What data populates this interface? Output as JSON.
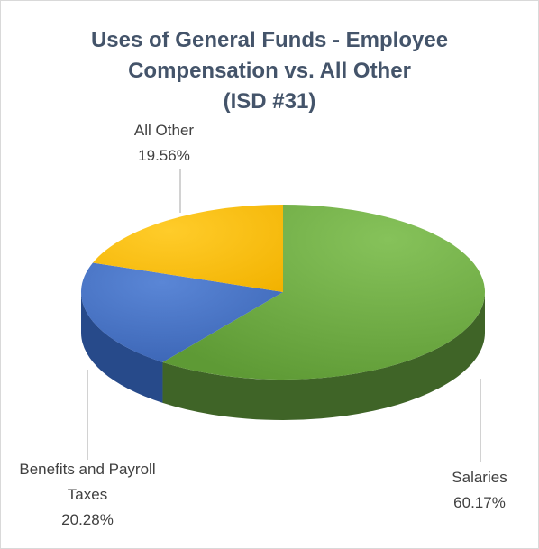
{
  "chart_data": {
    "type": "pie",
    "title_lines": [
      "Uses of General Funds - Employee",
      "Compensation vs. All Other",
      "(ISD #31)"
    ],
    "slices": [
      {
        "name": "Salaries",
        "label_lines": [
          "Salaries"
        ],
        "value": 60.17,
        "value_label": "60.17%",
        "color": "#70ad47",
        "side": "#3f6427"
      },
      {
        "name": "Benefits and Payroll Taxes",
        "label_lines": [
          "Benefits and Payroll",
          "Taxes"
        ],
        "value": 20.28,
        "value_label": "20.28%",
        "color": "#4472c4",
        "side": "#274a8a"
      },
      {
        "name": "All Other",
        "label_lines": [
          "All Other"
        ],
        "value": 19.56,
        "value_label": "19.56%",
        "color": "#ffc000",
        "side": "#b88a00"
      }
    ],
    "style": "3d-pie",
    "legend": "none",
    "label_lines_color": "#a6a6a6"
  }
}
